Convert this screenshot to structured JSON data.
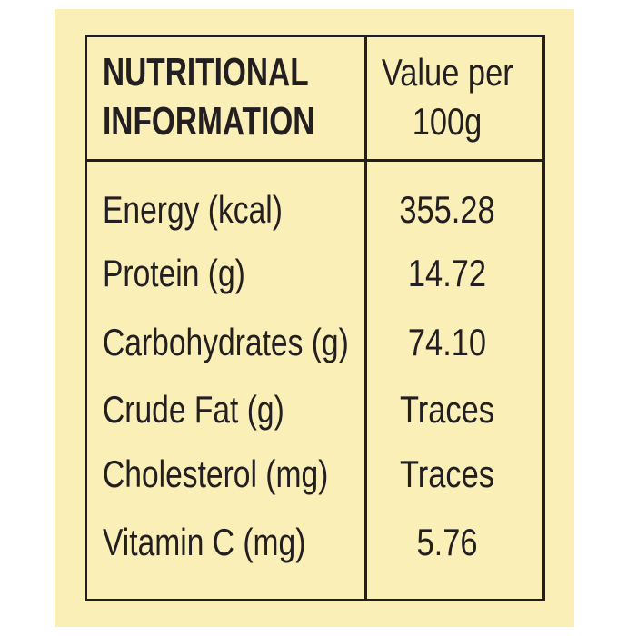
{
  "header": {
    "left": [
      "NUTRITIONAL",
      "INFORMATION"
    ],
    "right": [
      "Value per",
      "100g"
    ]
  },
  "table": {
    "rows": [
      [
        "Energy (kcal)",
        "355.28"
      ],
      [
        "Protein (g)",
        "14.72"
      ],
      [
        "Carbohydrates (g)",
        "74.10"
      ],
      [
        "Crude Fat (g)",
        "Traces"
      ],
      [
        "Cholesterol (mg)",
        "Traces"
      ],
      [
        "Vitamin C (mg)",
        "5.76"
      ]
    ]
  }
}
